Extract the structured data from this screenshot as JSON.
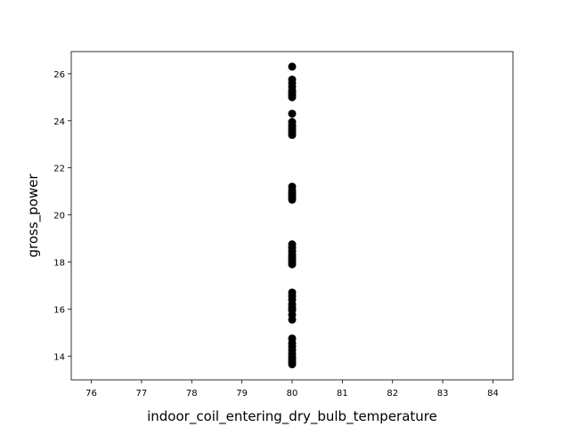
{
  "chart_data": {
    "type": "scatter",
    "title": "",
    "xlabel": "indoor_coil_entering_dry_bulb_temperature",
    "ylabel": "gross_power",
    "xlim": [
      75.6,
      84.4
    ],
    "ylim": [
      12.99,
      26.94
    ],
    "xticks": [
      76,
      77,
      78,
      79,
      80,
      81,
      82,
      83,
      84
    ],
    "yticks": [
      14,
      16,
      18,
      20,
      22,
      24,
      26
    ],
    "grid": false,
    "legend": "none",
    "marker_color": "#000000",
    "points": [
      {
        "x": 80,
        "y": 26.3
      },
      {
        "x": 80,
        "y": 25.75
      },
      {
        "x": 80,
        "y": 25.6
      },
      {
        "x": 80,
        "y": 25.45
      },
      {
        "x": 80,
        "y": 25.3
      },
      {
        "x": 80,
        "y": 25.2
      },
      {
        "x": 80,
        "y": 25.1
      },
      {
        "x": 80,
        "y": 25.0
      },
      {
        "x": 80,
        "y": 24.3
      },
      {
        "x": 80,
        "y": 23.95
      },
      {
        "x": 80,
        "y": 23.8
      },
      {
        "x": 80,
        "y": 23.7
      },
      {
        "x": 80,
        "y": 23.6
      },
      {
        "x": 80,
        "y": 23.5
      },
      {
        "x": 80,
        "y": 23.4
      },
      {
        "x": 80,
        "y": 21.2
      },
      {
        "x": 80,
        "y": 21.05
      },
      {
        "x": 80,
        "y": 20.95
      },
      {
        "x": 80,
        "y": 20.85
      },
      {
        "x": 80,
        "y": 20.75
      },
      {
        "x": 80,
        "y": 20.65
      },
      {
        "x": 80,
        "y": 18.75
      },
      {
        "x": 80,
        "y": 18.6
      },
      {
        "x": 80,
        "y": 18.45
      },
      {
        "x": 80,
        "y": 18.3
      },
      {
        "x": 80,
        "y": 18.2
      },
      {
        "x": 80,
        "y": 18.1
      },
      {
        "x": 80,
        "y": 18.0
      },
      {
        "x": 80,
        "y": 17.9
      },
      {
        "x": 80,
        "y": 16.7
      },
      {
        "x": 80,
        "y": 16.55
      },
      {
        "x": 80,
        "y": 16.4
      },
      {
        "x": 80,
        "y": 16.2
      },
      {
        "x": 80,
        "y": 16.05
      },
      {
        "x": 80,
        "y": 15.95
      },
      {
        "x": 80,
        "y": 15.75
      },
      {
        "x": 80,
        "y": 15.55
      },
      {
        "x": 80,
        "y": 14.75
      },
      {
        "x": 80,
        "y": 14.55
      },
      {
        "x": 80,
        "y": 14.4
      },
      {
        "x": 80,
        "y": 14.25
      },
      {
        "x": 80,
        "y": 14.1
      },
      {
        "x": 80,
        "y": 13.95
      },
      {
        "x": 80,
        "y": 13.85
      },
      {
        "x": 80,
        "y": 13.75
      },
      {
        "x": 80,
        "y": 13.65
      }
    ]
  }
}
